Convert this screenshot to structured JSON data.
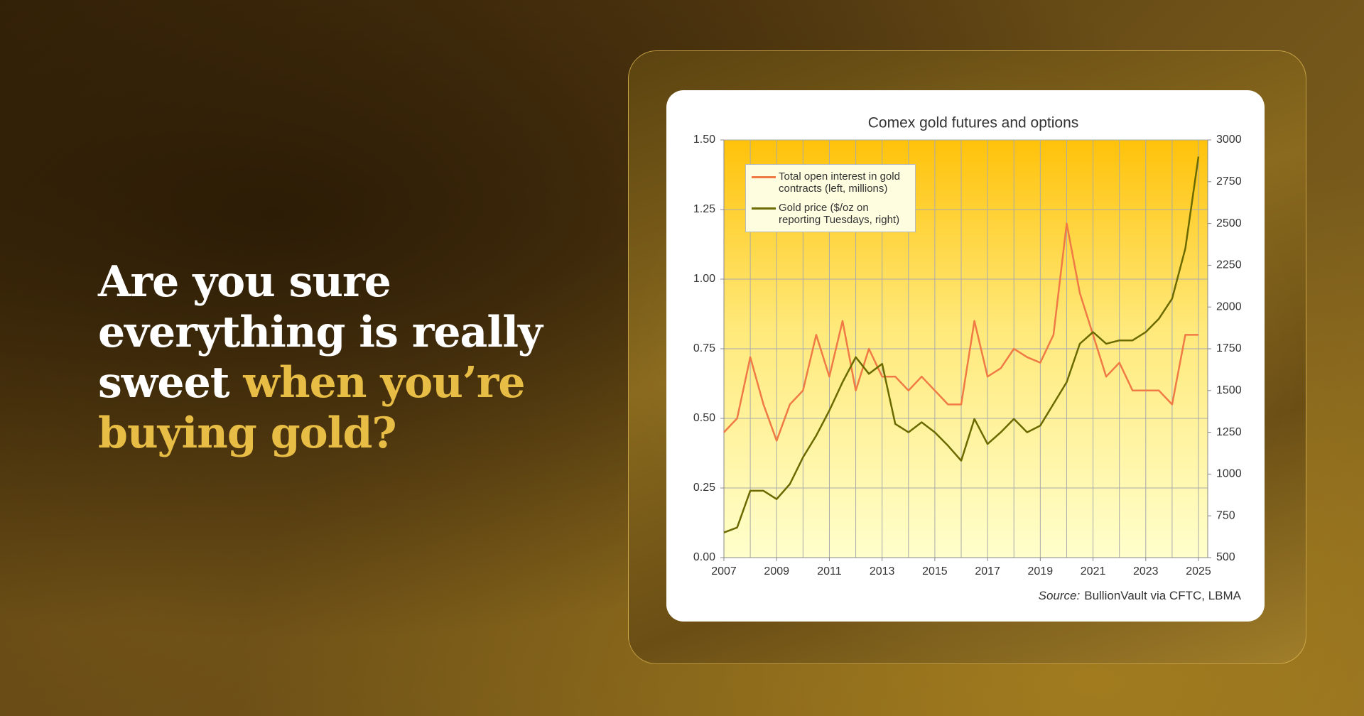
{
  "headline": {
    "white": "Are you sure everything is really sweet ",
    "gold": "when you’re buying gold?"
  },
  "chart_data": {
    "type": "line",
    "title": "Comex gold futures and options",
    "source_label": "Source:",
    "source": "BullionVault via CFTC, LBMA",
    "x": [
      2007,
      2007.5,
      2008,
      2008.5,
      2009,
      2009.5,
      2010,
      2010.5,
      2011,
      2011.5,
      2012,
      2012.5,
      2013,
      2013.5,
      2014,
      2014.5,
      2015,
      2015.5,
      2016,
      2016.5,
      2017,
      2017.5,
      2018,
      2018.5,
      2019,
      2019.5,
      2020,
      2020.5,
      2021,
      2021.5,
      2022,
      2022.5,
      2023,
      2023.5,
      2024,
      2024.5,
      2025
    ],
    "series": [
      {
        "name": "Total open interest in gold contracts (left, millions)",
        "color": "#f07a45",
        "values": [
          0.45,
          0.5,
          0.72,
          0.55,
          0.42,
          0.55,
          0.6,
          0.8,
          0.65,
          0.85,
          0.6,
          0.75,
          0.65,
          0.65,
          0.6,
          0.65,
          0.6,
          0.55,
          0.55,
          0.85,
          0.65,
          0.68,
          0.75,
          0.72,
          0.7,
          0.8,
          1.2,
          0.95,
          0.8,
          0.65,
          0.7,
          0.6,
          0.6,
          0.6,
          0.55,
          0.8,
          0.8
        ]
      },
      {
        "name": "Gold price ($/oz on reporting Tuesdays, right)",
        "color": "#6b6a00",
        "axis": "y2",
        "values": [
          650,
          680,
          900,
          900,
          850,
          940,
          1100,
          1230,
          1380,
          1550,
          1700,
          1600,
          1660,
          1300,
          1250,
          1310,
          1250,
          1170,
          1080,
          1330,
          1180,
          1250,
          1330,
          1250,
          1290,
          1420,
          1550,
          1780,
          1850,
          1780,
          1800,
          1800,
          1850,
          1930,
          2050,
          2350,
          2900
        ]
      }
    ],
    "xlim": [
      2007,
      2025.35
    ],
    "xticks": [
      2007,
      2009,
      2011,
      2013,
      2015,
      2017,
      2019,
      2021,
      2023,
      2025
    ],
    "ylim": [
      0,
      1.5
    ],
    "yticks": [
      {
        "value": 0,
        "label": "0.00"
      },
      {
        "value": 0.25,
        "label": "0.25"
      },
      {
        "value": 0.5,
        "label": "0.50"
      },
      {
        "value": 0.75,
        "label": "0.75"
      },
      {
        "value": 1,
        "label": "1.00"
      },
      {
        "value": 1.25,
        "label": "1.25"
      },
      {
        "value": 1.5,
        "label": "1.50"
      }
    ],
    "y2lim": [
      500,
      3000
    ],
    "y2ticks": [
      500,
      750,
      1000,
      1250,
      1500,
      1750,
      2000,
      2250,
      2500,
      2750,
      3000
    ],
    "grid": true
  }
}
